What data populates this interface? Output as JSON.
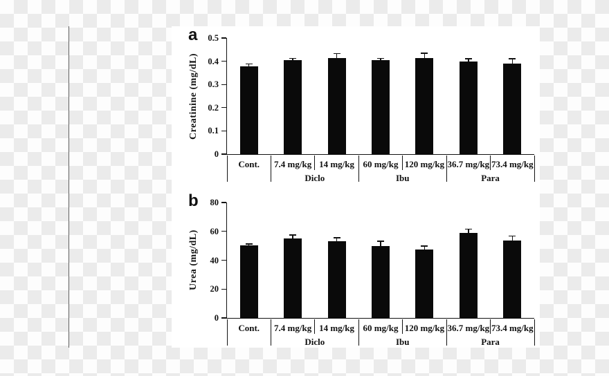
{
  "background": {
    "checker_light": "#fdfdfd",
    "checker_dark": "#ebebeb",
    "divider_color": "#5f5f5f",
    "panel_background": "#ffffff"
  },
  "chart_data": [
    {
      "type": "bar",
      "panel_label": "a",
      "title": "",
      "xlabel": "",
      "ylabel": "Creatinine (mg/dL)",
      "ylim": [
        0,
        0.5
      ],
      "ytick_values": [
        0.5,
        0.4,
        0.3,
        0.2,
        0.1,
        0
      ],
      "ytick_labels": [
        "0.5",
        "0.4",
        "0.3",
        "0.2",
        "0.1",
        "0"
      ],
      "grid": false,
      "legend_position": "none",
      "categories": [
        "Cont.",
        "7.4 mg/kg",
        "14 mg/kg",
        "60 mg/kg",
        "120 mg/kg",
        "36.7 mg/kg",
        "73.4 mg/kg"
      ],
      "groups": [
        {
          "label": "",
          "span": 1
        },
        {
          "label": "Diclo",
          "span": 2
        },
        {
          "label": "Ibu",
          "span": 2
        },
        {
          "label": "Para",
          "span": 2
        }
      ],
      "values": [
        0.379,
        0.404,
        0.415,
        0.404,
        0.415,
        0.399,
        0.389
      ],
      "errors": [
        0.01,
        0.009,
        0.018,
        0.009,
        0.02,
        0.012,
        0.022
      ],
      "bar_color": "#0a0a0a"
    },
    {
      "type": "bar",
      "panel_label": "b",
      "title": "",
      "xlabel": "",
      "ylabel": "Urea (mg/dL)",
      "ylim": [
        0,
        80
      ],
      "ytick_values": [
        80,
        60,
        40,
        20,
        0
      ],
      "ytick_labels": [
        "80",
        "60",
        "40",
        "20",
        "0"
      ],
      "grid": false,
      "legend_position": "none",
      "categories": [
        "Cont.",
        "7.4 mg/kg",
        "14 mg/kg",
        "60 mg/kg",
        "120 mg/kg",
        "36.7 mg/kg",
        "73.4 mg/kg"
      ],
      "groups": [
        {
          "label": "",
          "span": 1
        },
        {
          "label": "Diclo",
          "span": 2
        },
        {
          "label": "Ibu",
          "span": 2
        },
        {
          "label": "Para",
          "span": 2
        }
      ],
      "values": [
        50.3,
        55.1,
        53.2,
        49.8,
        47.4,
        58.9,
        53.8
      ],
      "errors": [
        1.0,
        2.4,
        2.4,
        3.4,
        2.4,
        2.6,
        2.9
      ],
      "bar_color": "#0a0a0a"
    }
  ]
}
